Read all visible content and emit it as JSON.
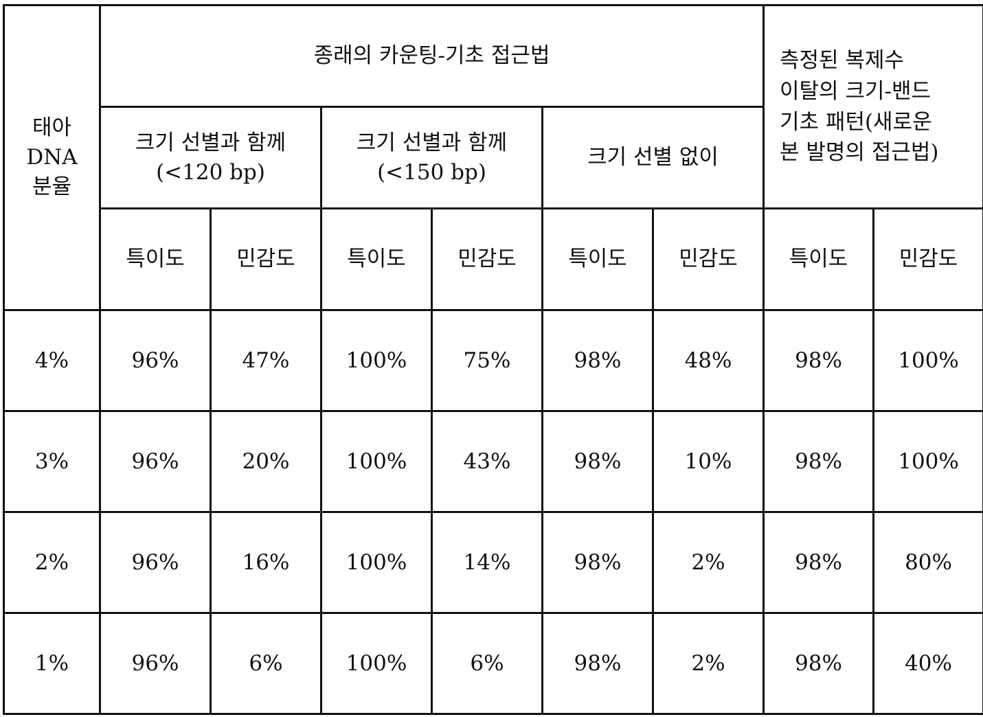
{
  "table": {
    "fraction_header": "태아\nDNA\n분율",
    "conventional_header": "종래의 카운팅-기초 접근법",
    "new_approach_header": "측정된 복제수\n이탈의 크기-밴드\n기초 패턴(새로운\n본 발명의 접근법)",
    "groups": [
      "크기 선별과 함께\n(<120 bp)",
      "크기 선별과 함께\n(<150 bp)",
      "크기 선별 없이"
    ],
    "metrics": [
      "특이도",
      "민감도",
      "특이도",
      "민감도",
      "특이도",
      "민감도",
      "특이도",
      "민감도"
    ],
    "rows": [
      {
        "fraction": "4%",
        "values": [
          "96%",
          "47%",
          "100%",
          "75%",
          "98%",
          "48%",
          "98%",
          "100%"
        ]
      },
      {
        "fraction": "3%",
        "values": [
          "96%",
          "20%",
          "100%",
          "43%",
          "98%",
          "10%",
          "98%",
          "100%"
        ]
      },
      {
        "fraction": "2%",
        "values": [
          "96%",
          "16%",
          "100%",
          "14%",
          "98%",
          "2%",
          "98%",
          "80%"
        ]
      },
      {
        "fraction": "1%",
        "values": [
          "96%",
          "6%",
          "100%",
          "6%",
          "98%",
          "2%",
          "98%",
          "40%"
        ]
      }
    ]
  }
}
